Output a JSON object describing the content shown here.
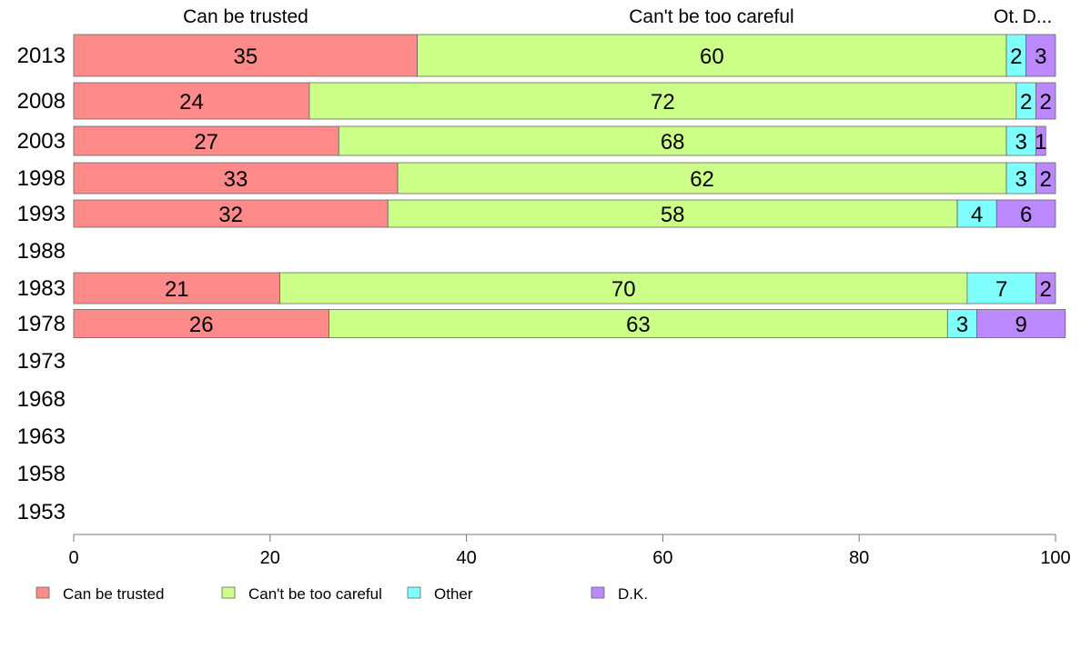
{
  "chart_data": {
    "type": "bar",
    "orientation": "horizontal",
    "stacked": true,
    "categories": [
      "2013",
      "2008",
      "2003",
      "1998",
      "1993",
      "1988",
      "1983",
      "1978",
      "1973",
      "1968",
      "1963",
      "1958",
      "1953"
    ],
    "series": [
      {
        "name": "Can be trusted",
        "color": "#FF8A8A",
        "values": [
          35,
          24,
          27,
          33,
          32,
          null,
          21,
          26,
          null,
          null,
          null,
          null,
          null
        ]
      },
      {
        "name": "Can't be too careful",
        "color": "#CCFF88",
        "values": [
          60,
          72,
          68,
          62,
          58,
          null,
          70,
          63,
          null,
          null,
          null,
          null,
          null
        ]
      },
      {
        "name": "Other",
        "color": "#80FFFF",
        "values": [
          2,
          2,
          3,
          3,
          4,
          null,
          7,
          3,
          null,
          null,
          null,
          null,
          null
        ]
      },
      {
        "name": "D.K.",
        "color": "#BB88FF",
        "values": [
          3,
          2,
          1,
          2,
          6,
          null,
          2,
          9,
          null,
          null,
          null,
          null,
          null
        ]
      }
    ],
    "top_labels": [
      "Can be trusted",
      "Can't be too careful",
      "Ot.",
      "D..."
    ],
    "xlim": [
      0,
      100
    ],
    "xticks": [
      0,
      20,
      40,
      60,
      80,
      100
    ],
    "legend_position": "bottom",
    "grid": false
  }
}
